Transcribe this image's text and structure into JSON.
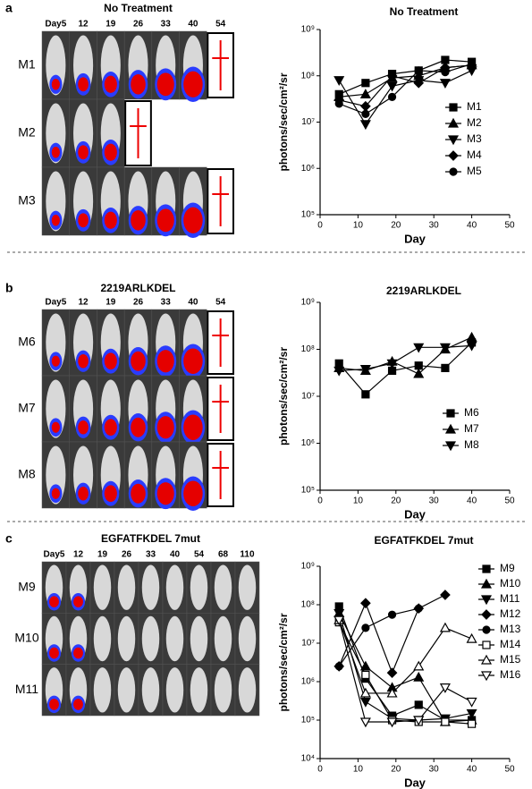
{
  "panels": [
    {
      "letter": "a",
      "title": "No Treatment",
      "days": [
        "Day5",
        "12",
        "19",
        "26",
        "33",
        "40",
        "54"
      ],
      "mice": [
        "M1",
        "M2",
        "M3"
      ]
    },
    {
      "letter": "b",
      "title": "2219ARLKDEL",
      "days": [
        "Day5",
        "12",
        "19",
        "26",
        "33",
        "40",
        "54"
      ],
      "mice": [
        "M6",
        "M7",
        "M8"
      ]
    },
    {
      "letter": "c",
      "title": "EGFATFKDEL 7mut",
      "days": [
        "Day5",
        "12",
        "19",
        "26",
        "33",
        "40",
        "54",
        "68",
        "110"
      ],
      "mice": [
        "M9",
        "M10",
        "M11"
      ]
    }
  ],
  "chart_data": [
    {
      "type": "line",
      "title": "No Treatment",
      "xlabel": "Day",
      "ylabel": "photons/sec/cm²/sr",
      "log_y": true,
      "x": [
        5,
        12,
        19,
        26,
        33,
        40
      ],
      "xlim": [
        0,
        50
      ],
      "xticks": [
        0,
        10,
        20,
        30,
        40,
        50
      ],
      "ylim": [
        100000,
        1000000000
      ],
      "yticks": [
        {
          "value": 100000,
          "label": "10⁵"
        },
        {
          "value": 1000000,
          "label": "10⁶"
        },
        {
          "value": 10000000,
          "label": "10⁷"
        },
        {
          "value": 100000000,
          "label": "10⁸"
        },
        {
          "value": 1000000000,
          "label": "10⁹"
        }
      ],
      "series": [
        {
          "name": "M1",
          "color": "#000000",
          "marker": "square",
          "filled": true,
          "values": [
            40000000,
            70000000,
            110000000,
            130000000,
            220000000,
            200000000
          ]
        },
        {
          "name": "M2",
          "color": "#000000",
          "marker": "triangle-up",
          "filled": true,
          "values": [
            35000000,
            40000000,
            90000000,
            100000000,
            150000000,
            170000000
          ]
        },
        {
          "name": "M3",
          "color": "#000000",
          "marker": "triangle-down",
          "filled": true,
          "values": [
            80000000,
            9000000,
            60000000,
            80000000,
            70000000,
            130000000
          ]
        },
        {
          "name": "M4",
          "color": "#000000",
          "marker": "diamond",
          "filled": true,
          "values": [
            30000000,
            22000000,
            100000000,
            70000000,
            150000000,
            170000000
          ]
        },
        {
          "name": "M5",
          "color": "#000000",
          "marker": "circle",
          "filled": true,
          "values": [
            25000000,
            15000000,
            35000000,
            130000000,
            120000000,
            180000000
          ]
        }
      ]
    },
    {
      "type": "line",
      "title": "2219ARLKDEL",
      "xlabel": "Day",
      "ylabel": "photons/sec/cm²/sr",
      "log_y": true,
      "x": [
        5,
        12,
        19,
        26,
        33,
        40
      ],
      "xlim": [
        0,
        50
      ],
      "xticks": [
        0,
        10,
        20,
        30,
        40,
        50
      ],
      "ylim": [
        100000,
        1000000000
      ],
      "yticks": [
        {
          "value": 100000,
          "label": "10⁵"
        },
        {
          "value": 1000000,
          "label": "10⁶"
        },
        {
          "value": 10000000,
          "label": "10⁷"
        },
        {
          "value": 100000000,
          "label": "10⁸"
        },
        {
          "value": 1000000000,
          "label": "10⁹"
        }
      ],
      "series": [
        {
          "name": "M6",
          "color": "#000000",
          "marker": "square",
          "filled": true,
          "values": [
            50000000,
            11000000,
            35000000,
            45000000,
            40000000,
            140000000
          ]
        },
        {
          "name": "M7",
          "color": "#000000",
          "marker": "triangle-up",
          "filled": true,
          "values": [
            40000000,
            35000000,
            55000000,
            30000000,
            100000000,
            180000000
          ]
        },
        {
          "name": "M8",
          "color": "#000000",
          "marker": "triangle-down",
          "filled": true,
          "values": [
            35000000,
            38000000,
            50000000,
            110000000,
            110000000,
            120000000
          ]
        }
      ]
    },
    {
      "type": "line",
      "title": "EGFATFKDEL 7mut",
      "xlabel": "Day",
      "ylabel": "photons/sec/cm²/sr",
      "log_y": true,
      "x": [
        5,
        12,
        19,
        26,
        33,
        40
      ],
      "xlim": [
        0,
        50
      ],
      "xticks": [
        0,
        10,
        20,
        30,
        40,
        50
      ],
      "ylim": [
        10000,
        1000000000
      ],
      "yticks": [
        {
          "value": 10000,
          "label": "10⁴"
        },
        {
          "value": 100000,
          "label": "10⁵"
        },
        {
          "value": 1000000,
          "label": "10⁶"
        },
        {
          "value": 10000000,
          "label": "10⁷"
        },
        {
          "value": 100000000,
          "label": "10⁸"
        },
        {
          "value": 1000000000,
          "label": "10⁹"
        }
      ],
      "series": [
        {
          "name": "M9",
          "color": "#000000",
          "marker": "square",
          "filled": true,
          "values": [
            90000000,
            1200000,
            130000,
            250000,
            100000,
            100000
          ]
        },
        {
          "name": "M10",
          "color": "#000000",
          "marker": "triangle-up",
          "filled": true,
          "values": [
            60000000,
            2500000,
            700000,
            1300000,
            90000,
            100000
          ]
        },
        {
          "name": "M11",
          "color": "#000000",
          "marker": "triangle-down",
          "filled": true,
          "values": [
            60000000,
            300000,
            110000,
            100000,
            110000,
            150000
          ]
        },
        {
          "name": "M12",
          "color": "#000000",
          "marker": "diamond",
          "filled": true,
          "values": [
            2500000,
            110000000,
            1700000,
            80000000,
            180000000,
            null
          ]
        },
        {
          "name": "M13",
          "color": "#000000",
          "marker": "circle",
          "filled": true,
          "values": [
            2500000,
            25000000,
            55000000,
            80000000,
            null,
            null
          ]
        },
        {
          "name": "M14",
          "color": "#000000",
          "marker": "square",
          "filled": false,
          "values": [
            35000000,
            1500000,
            100000,
            90000,
            90000,
            80000
          ]
        },
        {
          "name": "M15",
          "color": "#000000",
          "marker": "triangle-up",
          "filled": false,
          "values": [
            40000000,
            500000,
            500000,
            2500000,
            25000000,
            13000000
          ]
        },
        {
          "name": "M16",
          "color": "#000000",
          "marker": "triangle-down",
          "filled": false,
          "values": [
            40000000,
            90000,
            90000,
            100000,
            700000,
            300000
          ]
        }
      ]
    }
  ]
}
